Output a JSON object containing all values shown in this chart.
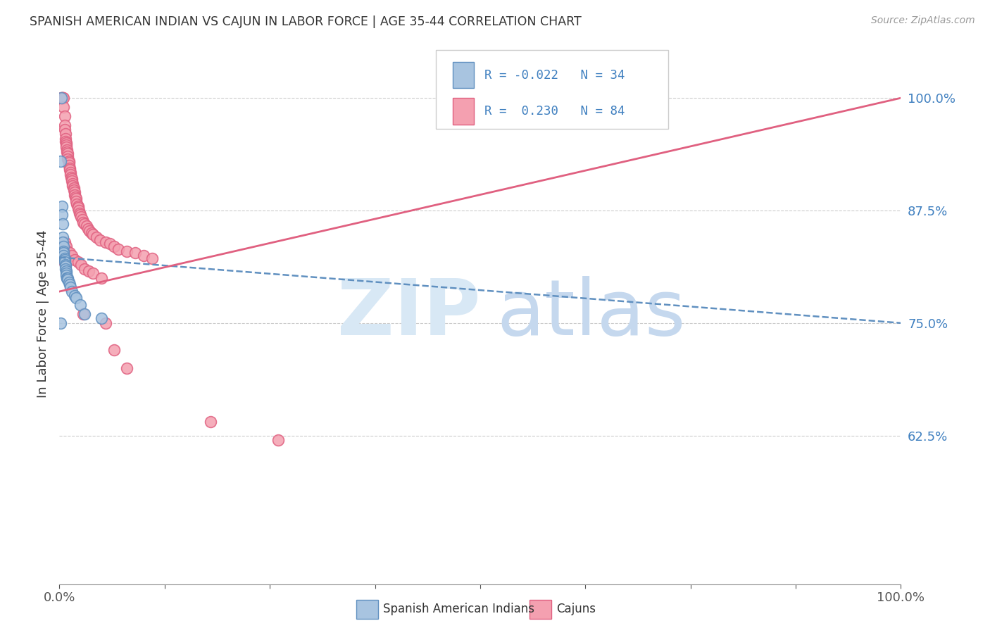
{
  "title": "SPANISH AMERICAN INDIAN VS CAJUN IN LABOR FORCE | AGE 35-44 CORRELATION CHART",
  "source": "Source: ZipAtlas.com",
  "ylabel": "In Labor Force | Age 35-44",
  "xlim": [
    0.0,
    1.0
  ],
  "ylim": [
    0.46,
    1.06
  ],
  "yticks": [
    0.625,
    0.75,
    0.875,
    1.0
  ],
  "ytick_labels": [
    "62.5%",
    "75.0%",
    "87.5%",
    "100.0%"
  ],
  "color_blue": "#a8c4e0",
  "color_pink": "#f4a0b0",
  "color_blue_edge": "#6090c0",
  "color_pink_edge": "#e06080",
  "color_blue_line": "#6090c0",
  "color_pink_line": "#e06080",
  "color_text_blue": "#4080c0",
  "blue_line_x": [
    0.0,
    1.0
  ],
  "blue_line_y": [
    0.823,
    0.75
  ],
  "pink_line_x": [
    0.0,
    1.0
  ],
  "pink_line_y": [
    0.785,
    1.0
  ],
  "scatter_blue_x": [
    0.001,
    0.002,
    0.003,
    0.003,
    0.004,
    0.004,
    0.004,
    0.005,
    0.005,
    0.005,
    0.005,
    0.006,
    0.006,
    0.006,
    0.007,
    0.007,
    0.007,
    0.008,
    0.008,
    0.008,
    0.009,
    0.009,
    0.01,
    0.01,
    0.011,
    0.012,
    0.013,
    0.015,
    0.018,
    0.02,
    0.025,
    0.03,
    0.05,
    0.001
  ],
  "scatter_blue_y": [
    0.93,
    1.0,
    0.88,
    0.87,
    0.86,
    0.845,
    0.84,
    0.835,
    0.83,
    0.828,
    0.825,
    0.822,
    0.82,
    0.818,
    0.815,
    0.813,
    0.81,
    0.808,
    0.805,
    0.803,
    0.8,
    0.8,
    0.8,
    0.798,
    0.795,
    0.793,
    0.79,
    0.785,
    0.78,
    0.778,
    0.77,
    0.76,
    0.755,
    0.75
  ],
  "scatter_pink_x": [
    0.002,
    0.003,
    0.003,
    0.004,
    0.004,
    0.005,
    0.005,
    0.006,
    0.006,
    0.006,
    0.007,
    0.007,
    0.007,
    0.008,
    0.008,
    0.008,
    0.009,
    0.009,
    0.01,
    0.01,
    0.01,
    0.011,
    0.011,
    0.011,
    0.012,
    0.012,
    0.013,
    0.013,
    0.014,
    0.015,
    0.015,
    0.016,
    0.016,
    0.017,
    0.017,
    0.018,
    0.018,
    0.019,
    0.02,
    0.02,
    0.021,
    0.022,
    0.022,
    0.023,
    0.024,
    0.025,
    0.026,
    0.027,
    0.028,
    0.03,
    0.032,
    0.034,
    0.036,
    0.038,
    0.04,
    0.044,
    0.048,
    0.055,
    0.06,
    0.065,
    0.07,
    0.08,
    0.09,
    0.1,
    0.11,
    0.003,
    0.006,
    0.008,
    0.01,
    0.012,
    0.015,
    0.018,
    0.022,
    0.026,
    0.03,
    0.035,
    0.04,
    0.05,
    0.028,
    0.055,
    0.065,
    0.08,
    0.18,
    0.26
  ],
  "scatter_pink_y": [
    1.0,
    1.0,
    1.0,
    1.0,
    1.0,
    1.0,
    0.99,
    0.98,
    0.97,
    0.965,
    0.96,
    0.955,
    0.952,
    0.95,
    0.948,
    0.945,
    0.942,
    0.94,
    0.938,
    0.935,
    0.932,
    0.93,
    0.928,
    0.925,
    0.922,
    0.92,
    0.917,
    0.915,
    0.912,
    0.91,
    0.908,
    0.905,
    0.902,
    0.9,
    0.898,
    0.895,
    0.892,
    0.89,
    0.888,
    0.885,
    0.882,
    0.88,
    0.878,
    0.875,
    0.872,
    0.87,
    0.868,
    0.865,
    0.862,
    0.86,
    0.858,
    0.855,
    0.852,
    0.85,
    0.848,
    0.845,
    0.842,
    0.84,
    0.838,
    0.835,
    0.832,
    0.83,
    0.828,
    0.825,
    0.822,
    0.82,
    0.84,
    0.835,
    0.83,
    0.828,
    0.825,
    0.82,
    0.818,
    0.815,
    0.81,
    0.808,
    0.805,
    0.8,
    0.76,
    0.75,
    0.72,
    0.7,
    0.64,
    0.62
  ]
}
